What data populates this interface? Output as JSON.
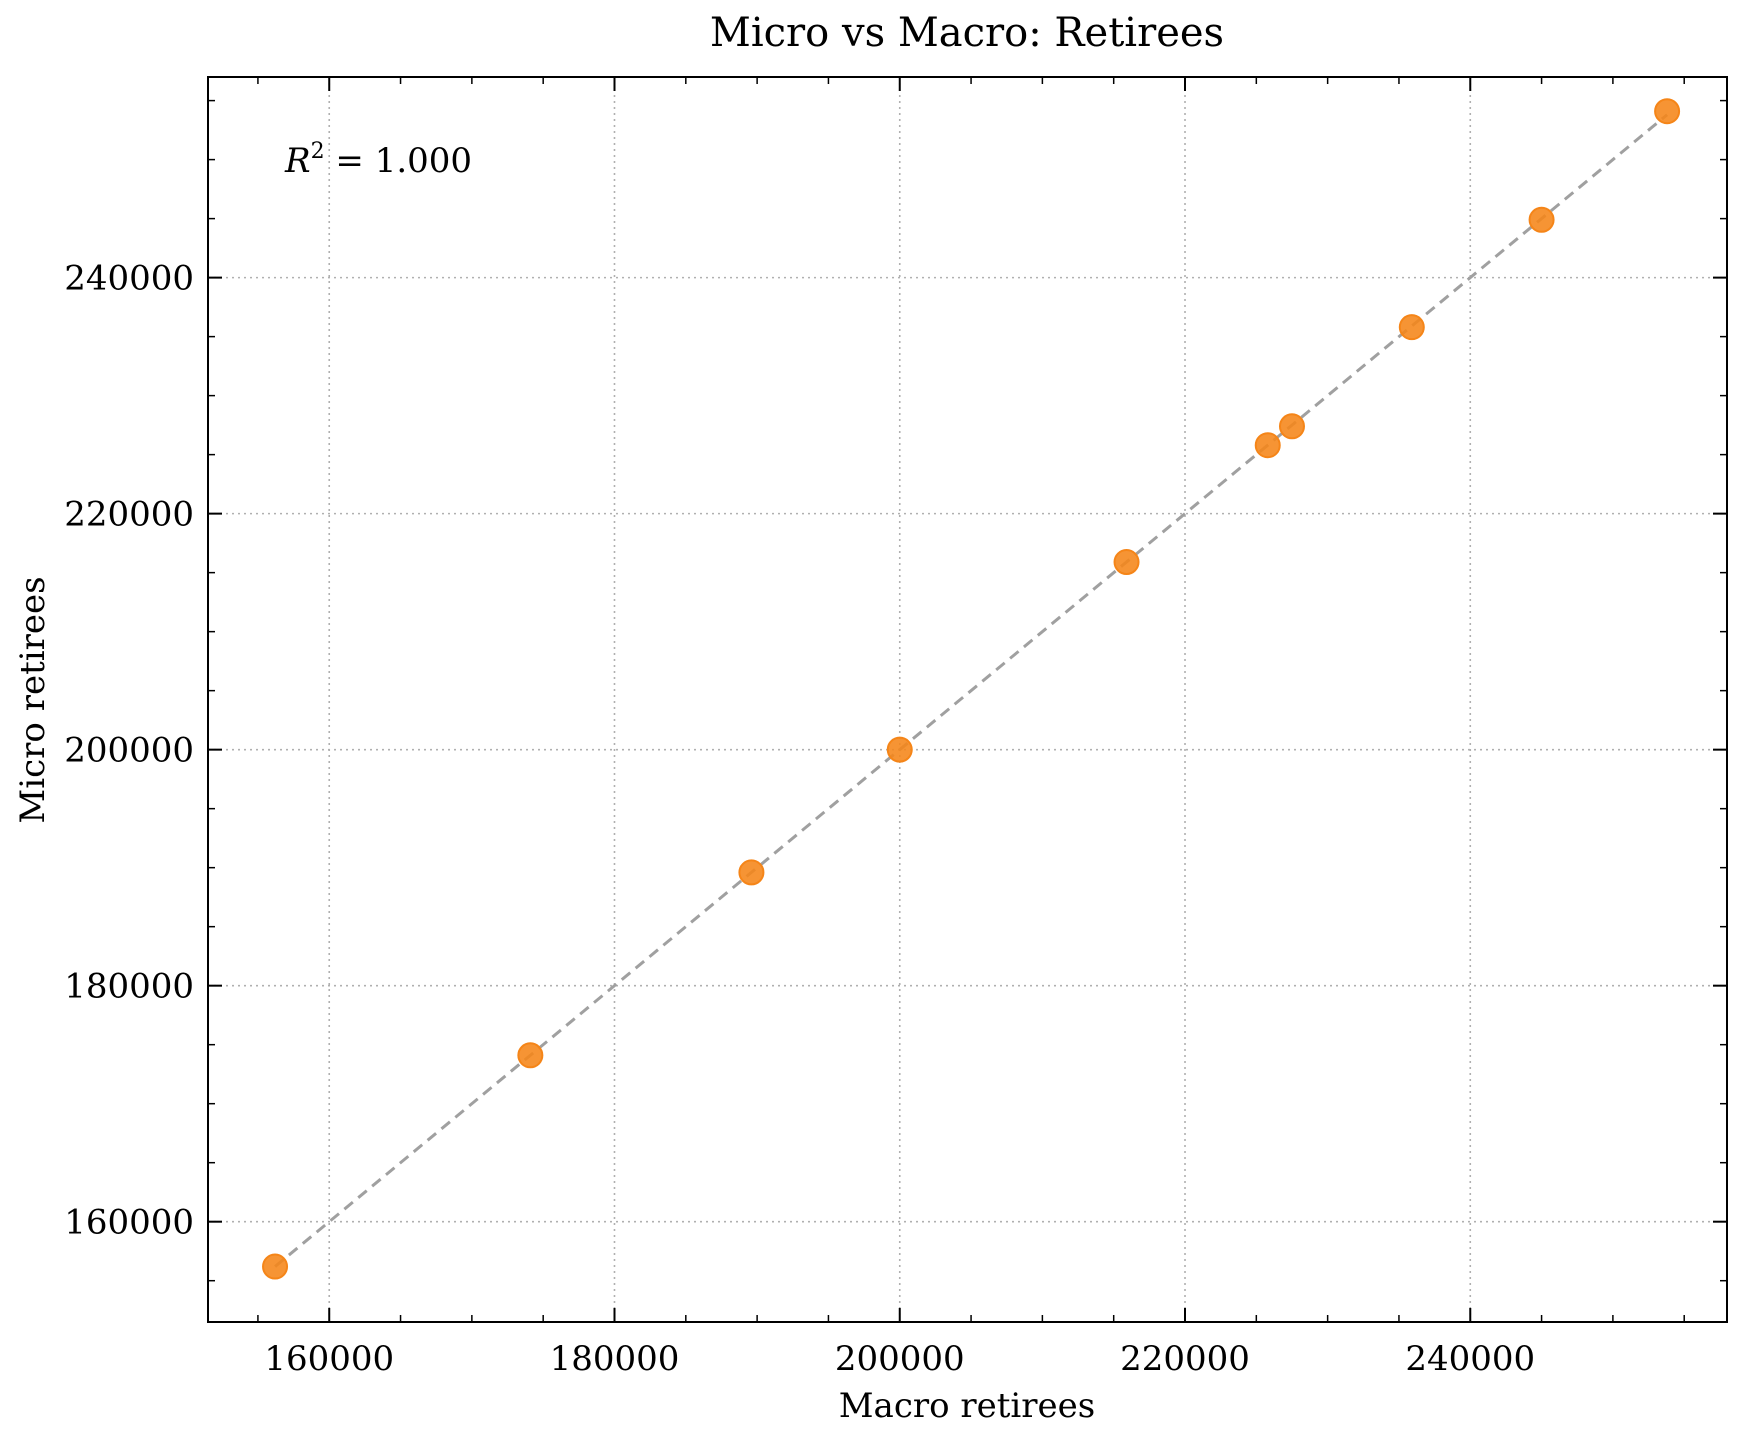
{
  "chart_data": {
    "type": "scatter",
    "title": "Micro vs Macro: Retirees",
    "xlabel": "Macro retirees",
    "ylabel": "Micro retirees",
    "xlim": [
      151500,
      258000
    ],
    "ylim": [
      151500,
      257000
    ],
    "x_ticks": [
      160000,
      180000,
      200000,
      220000,
      240000
    ],
    "y_ticks": [
      160000,
      180000,
      200000,
      220000,
      240000
    ],
    "x_tick_labels": [
      "160000",
      "180000",
      "200000",
      "220000",
      "240000"
    ],
    "y_tick_labels": [
      "160000",
      "180000",
      "200000",
      "220000",
      "240000"
    ],
    "annotation": {
      "prefix": "R",
      "sup": "2",
      "suffix": " = 1.000"
    },
    "grid": true,
    "legend": "none",
    "colors": {
      "points": "#f58518",
      "fit_line": "#a0a0a0",
      "grid": "#b0b0b0",
      "axes": "#000000"
    },
    "fit_line": {
      "x": [
        156200,
        253800
      ],
      "y": [
        156200,
        253800
      ]
    },
    "points": {
      "x": [
        156200,
        174100,
        189600,
        200000,
        215900,
        225800,
        227500,
        235900,
        245000,
        253800
      ],
      "y": [
        156200,
        174100,
        189600,
        200000,
        215900,
        225800,
        227400,
        235800,
        244900,
        254100
      ]
    }
  }
}
